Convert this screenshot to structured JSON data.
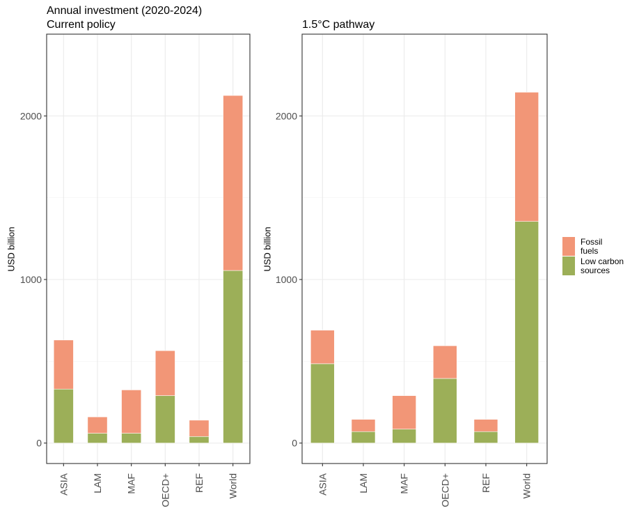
{
  "chart_data": [
    {
      "type": "bar",
      "stacked": true,
      "title": "Annual investment (2020-2024)",
      "subtitle": "Current policy",
      "xlabel": "",
      "ylabel": "USD billion",
      "ylim": [
        -125,
        2500
      ],
      "yticks": [
        0,
        1000,
        2000
      ],
      "categories": [
        "ASIA",
        "LAM",
        "MAF",
        "OECD+",
        "REF",
        "World"
      ],
      "series": [
        {
          "name": "Low carbon sources",
          "color": "#9CAF58",
          "values": [
            330,
            60,
            60,
            290,
            40,
            1055
          ]
        },
        {
          "name": "Fossil fuels",
          "color": "#F29677",
          "values": [
            300,
            100,
            265,
            275,
            100,
            1070
          ]
        }
      ],
      "grid": true,
      "legend": "right"
    },
    {
      "type": "bar",
      "stacked": true,
      "title": "1.5°C pathway",
      "subtitle": "",
      "xlabel": "",
      "ylabel": "USD billion",
      "ylim": [
        -125,
        2500
      ],
      "yticks": [
        0,
        1000,
        2000
      ],
      "categories": [
        "ASIA",
        "LAM",
        "MAF",
        "OECD+",
        "REF",
        "World"
      ],
      "series": [
        {
          "name": "Low carbon sources",
          "color": "#9CAF58",
          "values": [
            485,
            70,
            85,
            395,
            70,
            1355
          ]
        },
        {
          "name": "Fossil fuels",
          "color": "#F29677",
          "values": [
            205,
            75,
            205,
            200,
            75,
            790
          ]
        }
      ],
      "grid": true,
      "legend": "right"
    }
  ],
  "legend": {
    "items": [
      {
        "label": "Fossil\nfuels",
        "color": "#F29677"
      },
      {
        "label": "Low carbon\nsources",
        "color": "#9CAF58"
      }
    ]
  }
}
